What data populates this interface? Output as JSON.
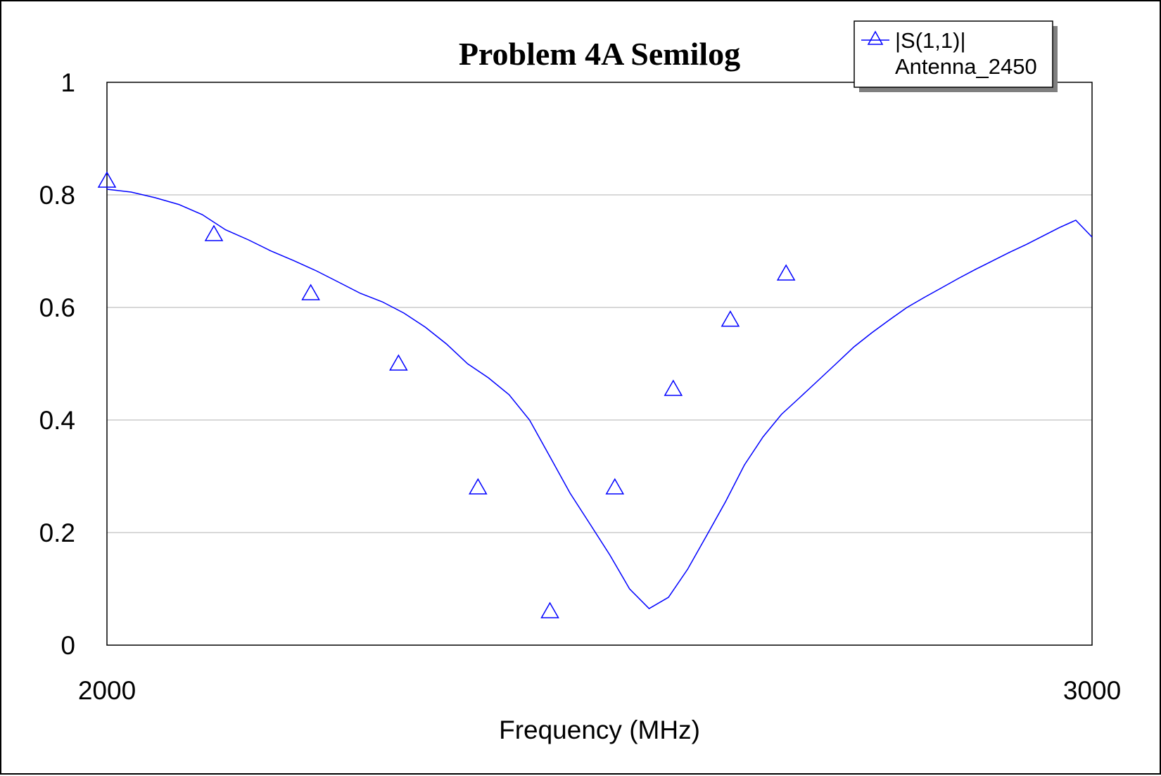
{
  "chart_data": {
    "type": "line",
    "title": "Problem 4A Semilog",
    "xlabel": "Frequency (MHz)",
    "ylabel": "",
    "xscale": "log",
    "xlim": [
      2000,
      3000
    ],
    "ylim": [
      0,
      1
    ],
    "x_ticks": [
      2000,
      3000
    ],
    "y_ticks": [
      0,
      0.2,
      0.4,
      0.6,
      0.8,
      1
    ],
    "x_tick_labels": [
      "2000",
      "3000"
    ],
    "y_tick_labels": [
      "0",
      "0.2",
      "0.4",
      "0.6",
      "0.8",
      "1"
    ],
    "grid": "horizontal",
    "legend_position": "top-right",
    "legend": [
      "|S(1,1)|",
      "Antenna_2450"
    ],
    "colors": {
      "series": "#0000ff",
      "grid": "#c0c0c0",
      "frame": "#000000"
    },
    "series": [
      {
        "name": "|S(1,1)|",
        "marker": "triangle",
        "x": [
          2000,
          2020,
          2040,
          2060,
          2080,
          2100,
          2120,
          2140,
          2160,
          2180,
          2200,
          2220,
          2240,
          2260,
          2280,
          2300,
          2320,
          2340,
          2360,
          2380,
          2400,
          2420,
          2440,
          2460,
          2480,
          2500,
          2520,
          2540,
          2560,
          2580,
          2600,
          2620,
          2640,
          2660,
          2680,
          2700,
          2720,
          2740,
          2760,
          2780,
          2800,
          2820,
          2840,
          2860,
          2880,
          2900,
          2920,
          2940,
          2960,
          2980,
          3000
        ],
        "values": [
          0.81,
          0.805,
          0.795,
          0.783,
          0.765,
          0.738,
          0.72,
          0.7,
          0.683,
          0.665,
          0.645,
          0.625,
          0.61,
          0.59,
          0.565,
          0.535,
          0.5,
          0.475,
          0.445,
          0.4,
          0.335,
          0.27,
          0.215,
          0.16,
          0.1,
          0.065,
          0.085,
          0.135,
          0.195,
          0.255,
          0.32,
          0.37,
          0.41,
          0.44,
          0.47,
          0.5,
          0.53,
          0.555,
          0.578,
          0.6,
          0.618,
          0.635,
          0.652,
          0.668,
          0.683,
          0.698,
          0.712,
          0.727,
          0.742,
          0.755,
          0.725
        ],
        "marker_x": [
          2000,
          2090,
          2175,
          2255,
          2330,
          2400,
          2465,
          2525,
          2585,
          2645
        ],
        "marker_values": [
          0.825,
          0.73,
          0.625,
          0.5,
          0.28,
          0.06,
          0.28,
          0.455,
          0.578,
          0.66
        ]
      }
    ]
  }
}
